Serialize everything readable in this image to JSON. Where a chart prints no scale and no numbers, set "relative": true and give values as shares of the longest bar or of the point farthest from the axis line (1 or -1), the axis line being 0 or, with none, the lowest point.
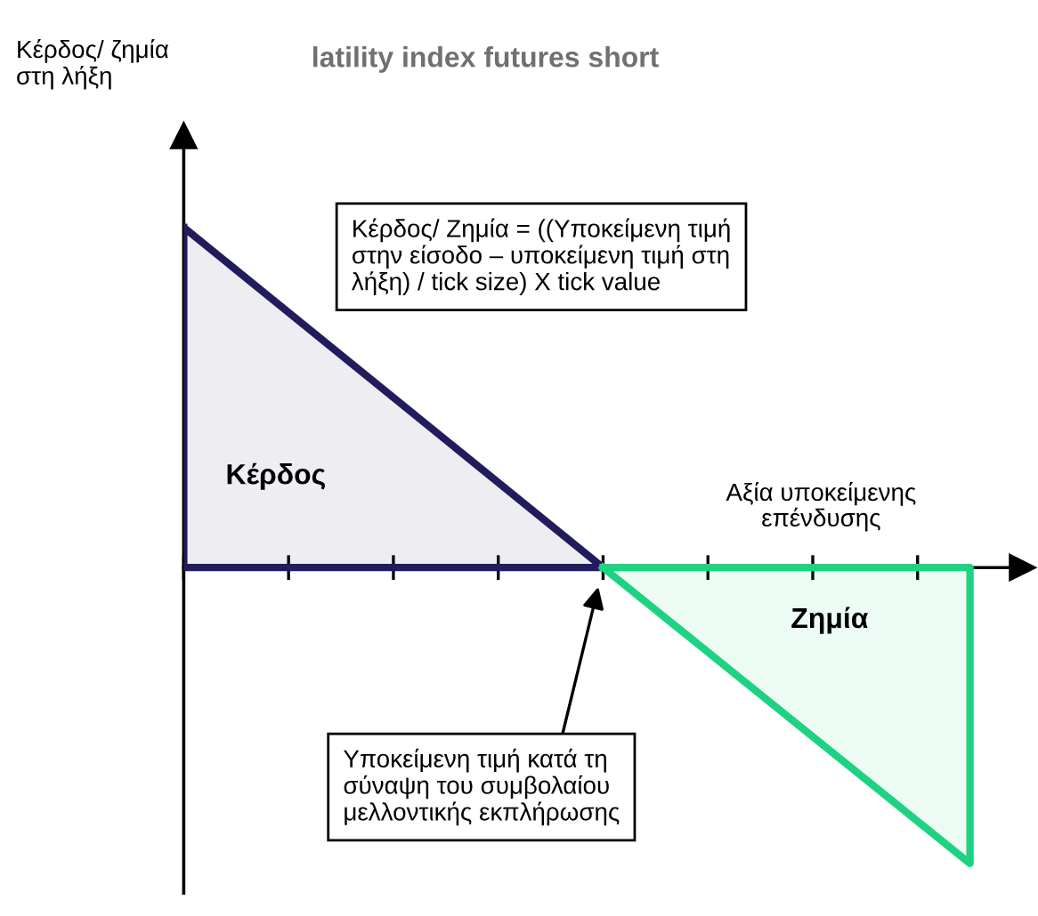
{
  "chart_data": {
    "type": "area",
    "title": "latility index futures short",
    "xlabel": "Αξία υποκείμενης\nεπένδυσης",
    "relative": true,
    "categories": [
      null,
      null,
      null,
      null,
      null,
      null,
      null,
      null,
      null,
      null,
      null,
      null,
      null,
      null,
      null,
      null
    ],
    "series": [
      {
        "color": "#221c5c",
        "values": [
          1,
          null,
          null,
          null,
          null,
          null,
          null,
          null,
          0,
          null,
          null,
          null,
          null,
          null,
          null,
          null
        ]
      },
      {
        "color": "#1fd282",
        "values": [
          null,
          null,
          null,
          null,
          null,
          null,
          null,
          null,
          0,
          null,
          null,
          null,
          null,
          null,
          null,
          -0.87
        ]
      }
    ],
    "annotations": [
      "Κέρδος/ Ζημία = ((Υποκείμενη τιμή\nστην είσοδο – υποκείμενη τιμή στη\nλήξη) / tick size) X tick value",
      "Κέρδος",
      "Ζημία",
      "Υποκείμενη τιμή κατά τη\nσύναψη του συμβολαίου\nμελλοντικής εκπλήρωσης",
      "Κέρδος/ ζημία\nστη λήξη"
    ],
    "marker": "none",
    "line_style": "solid"
  }
}
